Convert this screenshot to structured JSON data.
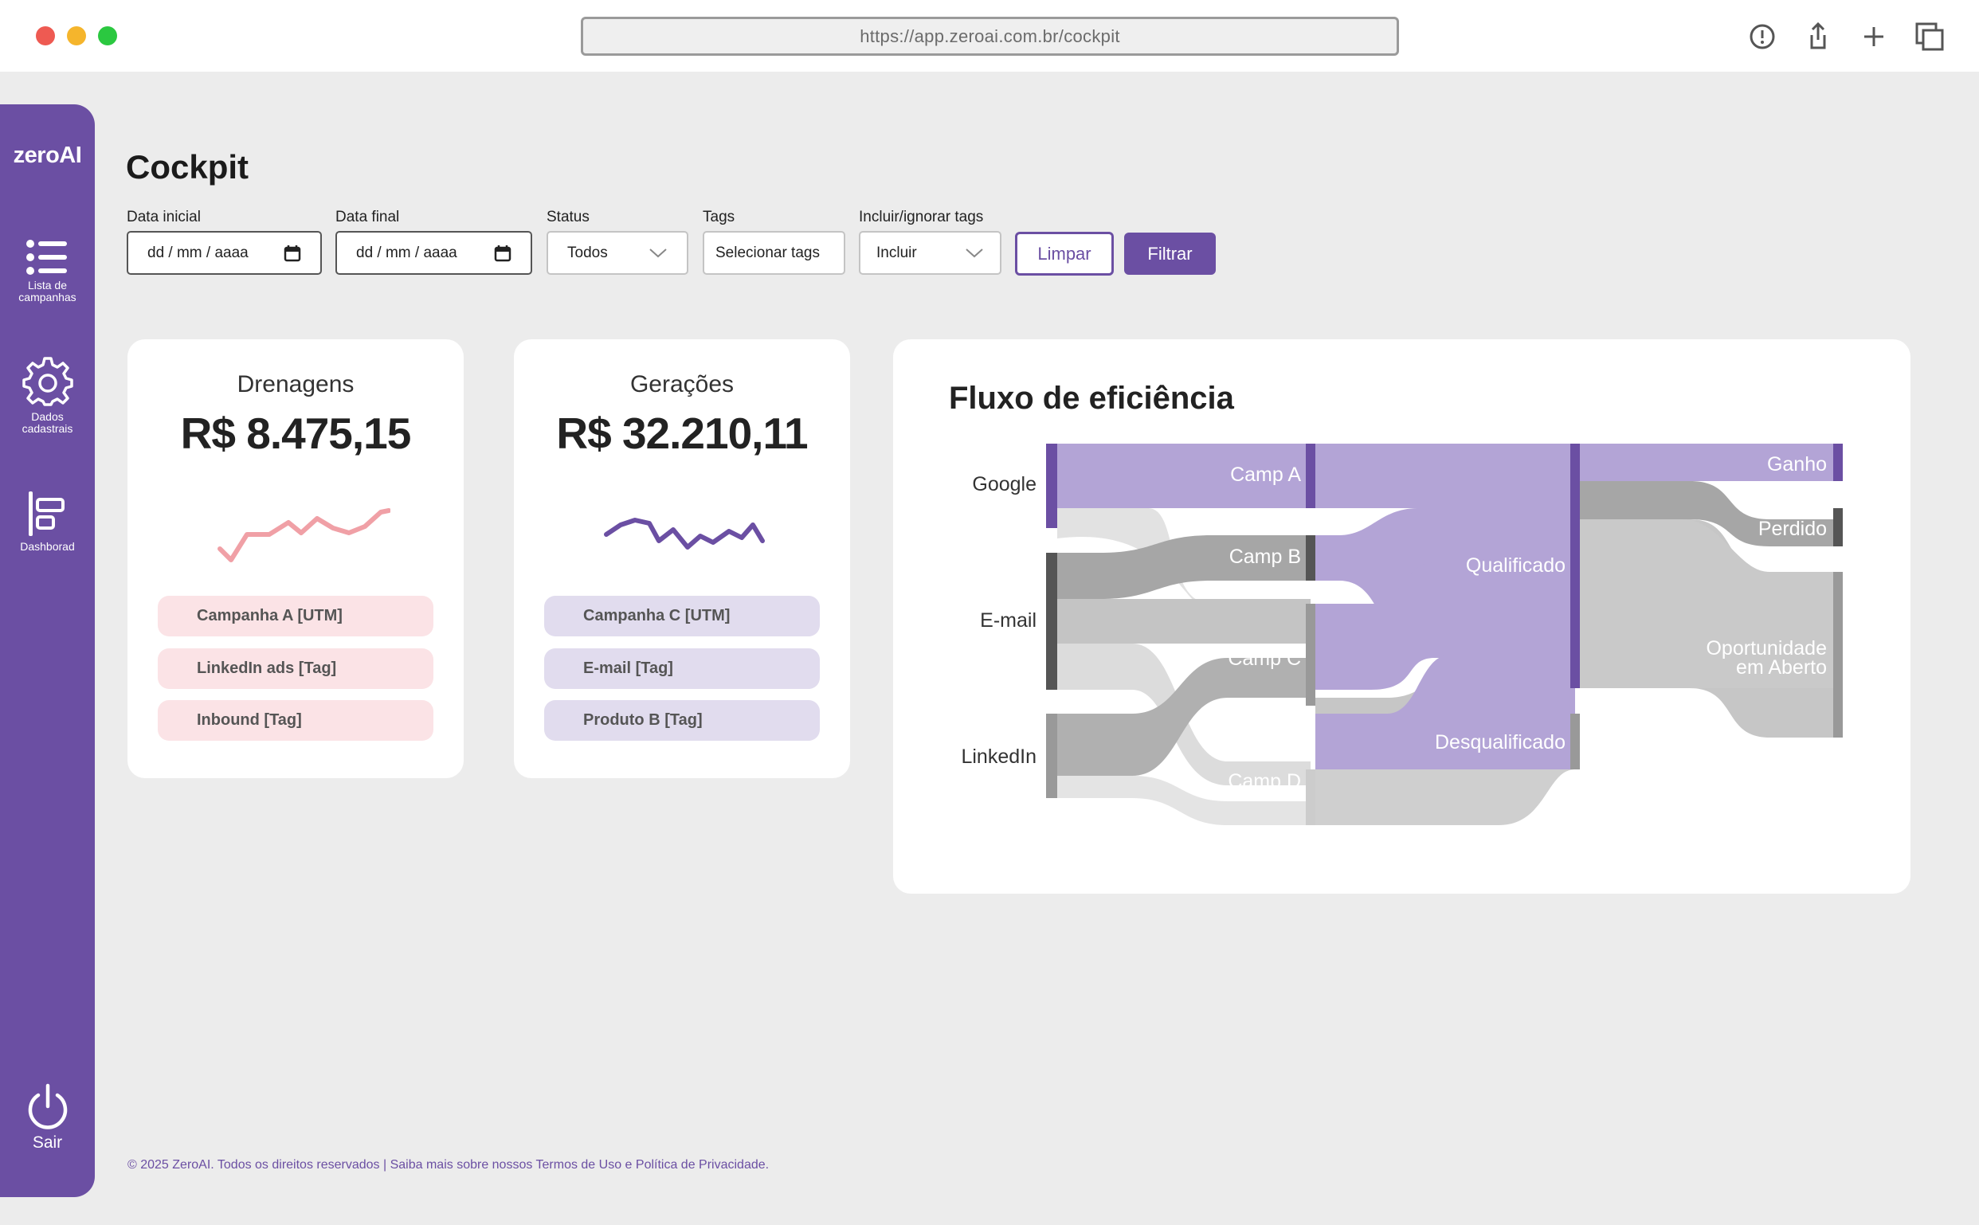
{
  "browser": {
    "url": "https://app.zeroai.com.br/cockpit"
  },
  "sidebar": {
    "logo": "zeroAI",
    "items": [
      {
        "label": "Lista de campanhas",
        "icon": "list-icon"
      },
      {
        "label": "Dados cadastrais",
        "icon": "gear-icon"
      },
      {
        "label": "Dashborad",
        "icon": "dashboard-icon"
      }
    ],
    "logout": {
      "label": "Sair",
      "icon": "power-icon"
    }
  },
  "page": {
    "title": "Cockpit"
  },
  "filters": {
    "start_date": {
      "label": "Data inicial",
      "placeholder": "dd / mm / aaaa"
    },
    "end_date": {
      "label": "Data final",
      "placeholder": "dd / mm / aaaa"
    },
    "status": {
      "label": "Status",
      "value": "Todos"
    },
    "tags": {
      "label": "Tags",
      "value": "Selecionar tags"
    },
    "include": {
      "label": "Incluir/ignorar tags",
      "value": "Incluir"
    },
    "clear_label": "Limpar",
    "filter_label": "Filtrar"
  },
  "cards": {
    "drenagens": {
      "title": "Drenagens",
      "value": "R$ 8.475,15",
      "color": "#f0a0a6",
      "tags": [
        "Campanha A [UTM]",
        "LinkedIn ads [Tag]",
        "Inbound [Tag]"
      ]
    },
    "geracoes": {
      "title": "Gerações",
      "value": "R$ 32.210,11",
      "color": "#6b4fa3",
      "tags": [
        "Campanha C [UTM]",
        "E-mail [Tag]",
        "Produto B [Tag]"
      ]
    }
  },
  "sankey": {
    "title": "Fluxo de eficiência",
    "sources": [
      "Google",
      "E-mail",
      "LinkedIn"
    ],
    "campaigns": [
      "Camp A",
      "Camp B",
      "Camp C",
      "Camp D"
    ],
    "stages": [
      "Qualificado",
      "Desqualificado"
    ],
    "outcomes": [
      "Ganho",
      "Perdido",
      "Oportunidade em Aberto"
    ],
    "colors": {
      "primary": "#6b4fa3",
      "light": "#b3a4d6"
    }
  },
  "footer": {
    "text": "© 2025 ZeroAI. Todos os direitos reservados | Saiba mais sobre nossos Termos de Uso e Política de Privacidade."
  }
}
